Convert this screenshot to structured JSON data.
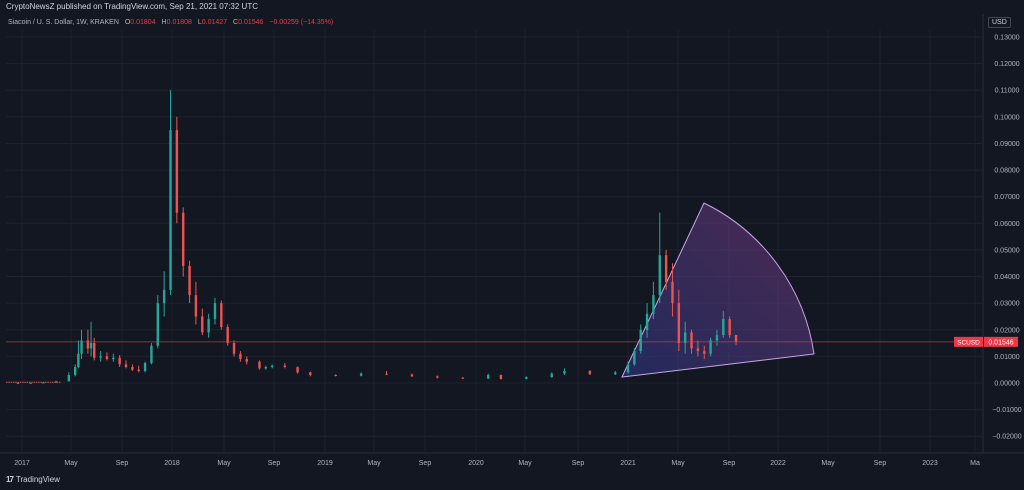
{
  "header": {
    "published": "CryptoNewsZ published on TradingView.com, Sep 21, 2021 07:32 UTC"
  },
  "legend": {
    "symbol": "Siacoin / U. S. Dollar, 1W, KRAKEN",
    "o_label": "O",
    "o_value": "0.01804",
    "h_label": "H",
    "h_value": "0.01808",
    "l_label": "L",
    "l_value": "0.01427",
    "c_label": "C",
    "c_value": "0.01546",
    "change": "−0.00259 (−14.35%)"
  },
  "price_axis": {
    "currency": "USD",
    "ticks": [
      "0.13000",
      "0.12000",
      "0.11000",
      "0.10000",
      "0.09000",
      "0.08000",
      "0.07000",
      "0.06000",
      "0.05000",
      "0.04000",
      "0.03000",
      "0.02000",
      "0.01000",
      "0.00000",
      "−0.01000",
      "−0.02000"
    ]
  },
  "price_tag": {
    "symbol": "SCUSD",
    "value": "0.01546"
  },
  "time_axis": {
    "labels": [
      "2017",
      "May",
      "Sep",
      "2018",
      "May",
      "Sep",
      "2019",
      "May",
      "Sep",
      "2020",
      "May",
      "Sep",
      "2021",
      "May",
      "Sep",
      "2022",
      "May",
      "Sep",
      "2023",
      "Ma"
    ]
  },
  "footer": {
    "brand": "TradingView"
  },
  "colors": {
    "background": "#131722",
    "up": "#26a69a",
    "down": "#ef5350",
    "price_line": "#f23645",
    "sector_fill": "#5b3a8a",
    "sector_edge": "#c9a6e8"
  },
  "chart_data": {
    "type": "candlestick",
    "interval": "1W",
    "ylim": [
      -0.025,
      0.135
    ],
    "last_close": 0.01546,
    "candles": [
      [
        "2017-01",
        3e-05,
        4e-05,
        2e-05,
        3e-05
      ],
      [
        "2017-02",
        3e-05,
        5e-05,
        3e-05,
        4e-05
      ],
      [
        "2017-03",
        4e-05,
        0.0002,
        4e-05,
        0.0002
      ],
      [
        "2017-04",
        0.0002,
        0.0008,
        0.0002,
        0.0006
      ],
      [
        "2017-05",
        0.0006,
        0.004,
        0.0006,
        0.003
      ],
      [
        "2017-05b",
        0.003,
        0.007,
        0.0025,
        0.006
      ],
      [
        "2017-05c",
        0.006,
        0.016,
        0.0055,
        0.011
      ],
      [
        "2017-06",
        0.011,
        0.02,
        0.009,
        0.016
      ],
      [
        "2017-06b",
        0.016,
        0.02,
        0.011,
        0.013
      ],
      [
        "2017-06c",
        0.013,
        0.023,
        0.01,
        0.015
      ],
      [
        "2017-07",
        0.015,
        0.017,
        0.0085,
        0.0095
      ],
      [
        "2017-07b",
        0.0095,
        0.012,
        0.008,
        0.01
      ],
      [
        "2017-08",
        0.01,
        0.0115,
        0.0085,
        0.009
      ],
      [
        "2017-08b",
        0.009,
        0.011,
        0.008,
        0.0095
      ],
      [
        "2017-09",
        0.0095,
        0.0105,
        0.006,
        0.007
      ],
      [
        "2017-09b",
        0.007,
        0.0085,
        0.0055,
        0.006
      ],
      [
        "2017-10",
        0.006,
        0.007,
        0.0045,
        0.005
      ],
      [
        "2017-10b",
        0.005,
        0.0065,
        0.004,
        0.0045
      ],
      [
        "2017-11",
        0.0045,
        0.008,
        0.004,
        0.0075
      ],
      [
        "2017-11b",
        0.0075,
        0.015,
        0.007,
        0.014
      ],
      [
        "2017-12",
        0.014,
        0.033,
        0.013,
        0.03
      ],
      [
        "2017-12b",
        0.03,
        0.042,
        0.025,
        0.035
      ],
      [
        "2018-01",
        0.035,
        0.11,
        0.033,
        0.095
      ],
      [
        "2018-01b",
        0.095,
        0.1,
        0.06,
        0.064
      ],
      [
        "2018-02",
        0.064,
        0.066,
        0.04,
        0.044
      ],
      [
        "2018-02b",
        0.044,
        0.046,
        0.03,
        0.033
      ],
      [
        "2018-03",
        0.033,
        0.038,
        0.022,
        0.025
      ],
      [
        "2018-03b",
        0.025,
        0.028,
        0.018,
        0.019
      ],
      [
        "2018-04",
        0.019,
        0.026,
        0.017,
        0.024
      ],
      [
        "2018-04b",
        0.024,
        0.032,
        0.022,
        0.03
      ],
      [
        "2018-05",
        0.03,
        0.031,
        0.02,
        0.021
      ],
      [
        "2018-05b",
        0.021,
        0.022,
        0.014,
        0.015
      ],
      [
        "2018-06",
        0.015,
        0.016,
        0.01,
        0.011
      ],
      [
        "2018-06b",
        0.011,
        0.012,
        0.008,
        0.009
      ],
      [
        "2018-07",
        0.009,
        0.01,
        0.007,
        0.008
      ],
      [
        "2018-08",
        0.008,
        0.0085,
        0.005,
        0.0055
      ],
      [
        "2018-08b",
        0.0055,
        0.0065,
        0.005,
        0.006
      ],
      [
        "2018-09",
        0.006,
        0.007,
        0.0055,
        0.0065
      ],
      [
        "2018-10",
        0.0065,
        0.0075,
        0.0055,
        0.006
      ],
      [
        "2018-11",
        0.006,
        0.0062,
        0.0035,
        0.004
      ],
      [
        "2018-12",
        0.004,
        0.0042,
        0.0025,
        0.003
      ],
      [
        "2019-02",
        0.003,
        0.0033,
        0.0025,
        0.0027
      ],
      [
        "2019-04",
        0.0027,
        0.004,
        0.0025,
        0.0035
      ],
      [
        "2019-06",
        0.0035,
        0.0045,
        0.003,
        0.0032
      ],
      [
        "2019-08",
        0.0032,
        0.0035,
        0.0023,
        0.0025
      ],
      [
        "2019-10",
        0.0025,
        0.0028,
        0.0017,
        0.002
      ],
      [
        "2019-12",
        0.002,
        0.0022,
        0.0015,
        0.0017
      ],
      [
        "2020-02",
        0.0017,
        0.0035,
        0.0015,
        0.003
      ],
      [
        "2020-03",
        0.003,
        0.0032,
        0.0013,
        0.0015
      ],
      [
        "2020-05",
        0.0015,
        0.0025,
        0.0014,
        0.0022
      ],
      [
        "2020-07",
        0.0022,
        0.004,
        0.002,
        0.0035
      ],
      [
        "2020-08",
        0.0035,
        0.0055,
        0.003,
        0.0045
      ],
      [
        "2020-10",
        0.0045,
        0.0048,
        0.003,
        0.0033
      ],
      [
        "2020-12",
        0.0033,
        0.0045,
        0.003,
        0.004
      ],
      [
        "2021-01",
        0.004,
        0.008,
        0.0035,
        0.007
      ],
      [
        "2021-01b",
        0.007,
        0.013,
        0.0065,
        0.012
      ],
      [
        "2021-02",
        0.012,
        0.022,
        0.011,
        0.02
      ],
      [
        "2021-02b",
        0.02,
        0.03,
        0.017,
        0.026
      ],
      [
        "2021-03",
        0.026,
        0.038,
        0.024,
        0.033
      ],
      [
        "2021-03b",
        0.033,
        0.064,
        0.03,
        0.048
      ],
      [
        "2021-04",
        0.048,
        0.05,
        0.035,
        0.038
      ],
      [
        "2021-04b",
        0.038,
        0.045,
        0.025,
        0.03
      ],
      [
        "2021-05",
        0.03,
        0.035,
        0.012,
        0.015
      ],
      [
        "2021-05b",
        0.015,
        0.023,
        0.011,
        0.019
      ],
      [
        "2021-06",
        0.019,
        0.02,
        0.011,
        0.013
      ],
      [
        "2021-06b",
        0.013,
        0.016,
        0.01,
        0.012
      ],
      [
        "2021-07",
        0.012,
        0.014,
        0.009,
        0.011
      ],
      [
        "2021-07b",
        0.011,
        0.017,
        0.01,
        0.016
      ],
      [
        "2021-08",
        0.016,
        0.02,
        0.014,
        0.018
      ],
      [
        "2021-08b",
        0.018,
        0.027,
        0.017,
        0.024
      ],
      [
        "2021-09",
        0.024,
        0.025,
        0.017,
        0.018
      ],
      [
        "2021-09b",
        0.01804,
        0.01808,
        0.01427,
        0.01546
      ]
    ]
  }
}
